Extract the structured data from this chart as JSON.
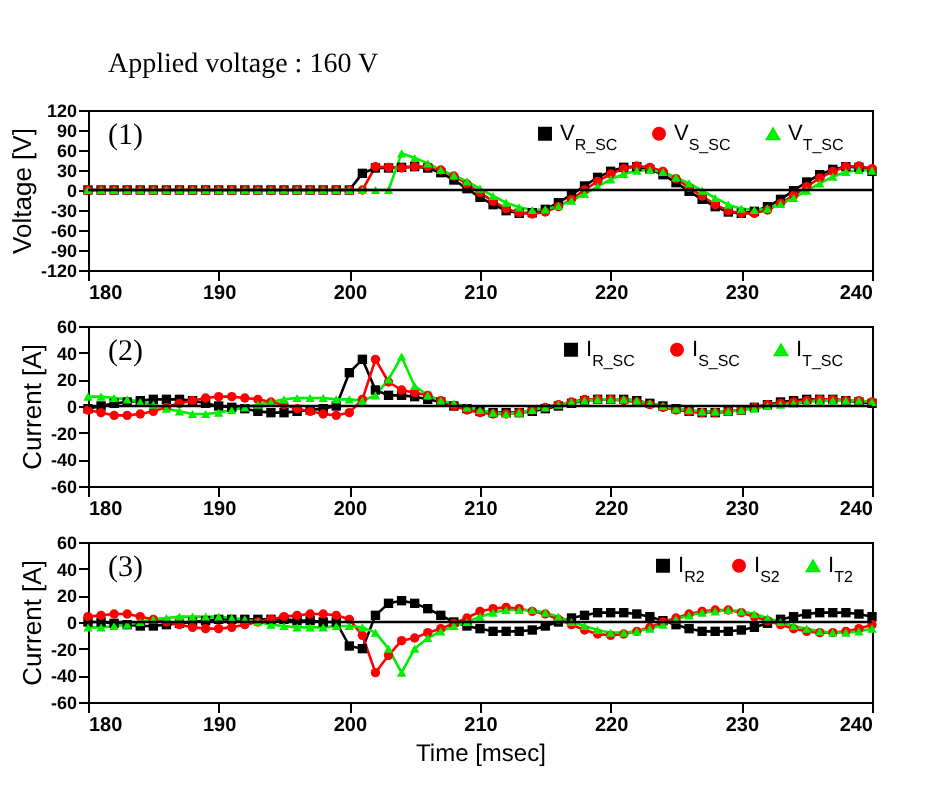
{
  "chart_data": [
    {
      "type": "line",
      "annotations": [
        "Applied voltage : 160 V",
        "(1)"
      ],
      "ylabel": "Voltage [V]",
      "xlim": [
        180,
        240
      ],
      "xticks": [
        180,
        190,
        200,
        210,
        220,
        230,
        240
      ],
      "ylim": [
        -120,
        120
      ],
      "yticks": [
        -120,
        -90,
        -60,
        -30,
        0,
        30,
        60,
        90,
        120
      ],
      "legend": "top right",
      "line_style": "solid",
      "ref_lines": [
        {
          "axis": "y",
          "value": 0,
          "color": "#000000"
        }
      ],
      "x": [
        180,
        181,
        182,
        183,
        184,
        185,
        186,
        187,
        188,
        189,
        190,
        191,
        192,
        193,
        194,
        195,
        196,
        197,
        198,
        199,
        200,
        201,
        202,
        203,
        204,
        205,
        206,
        207,
        208,
        209,
        210,
        211,
        212,
        213,
        214,
        215,
        216,
        217,
        218,
        219,
        220,
        221,
        222,
        223,
        224,
        225,
        226,
        227,
        228,
        229,
        230,
        231,
        232,
        233,
        234,
        235,
        236,
        237,
        238,
        239,
        240
      ],
      "series": [
        {
          "name": "V$_{R_SC}$",
          "color": "#000000",
          "marker": "square",
          "values": [
            0,
            0,
            0,
            0,
            0,
            0,
            0,
            0,
            0,
            0,
            0,
            0,
            0,
            0,
            0,
            0,
            0,
            0,
            0,
            0,
            0,
            25,
            33,
            33,
            34,
            35,
            33,
            26,
            15,
            2,
            -11,
            -22,
            -31,
            -35,
            -34,
            -29,
            -19,
            -7,
            6,
            19,
            28,
            34,
            35,
            31,
            23,
            11,
            -2,
            -14,
            -25,
            -33,
            -35,
            -32,
            -25,
            -14,
            -1,
            12,
            23,
            31,
            35,
            34,
            28
          ]
        },
        {
          "name": "V$_{S_SC}$",
          "color": "#ff0000",
          "marker": "circle",
          "values": [
            0,
            0,
            0,
            0,
            0,
            0,
            0,
            0,
            0,
            0,
            0,
            0,
            0,
            0,
            0,
            0,
            0,
            0,
            0,
            0,
            0,
            0,
            35,
            34,
            33,
            35,
            35,
            30,
            21,
            9,
            -4,
            -17,
            -28,
            -34,
            -36,
            -33,
            -25,
            -14,
            0,
            13,
            24,
            32,
            36,
            34,
            28,
            17,
            4,
            -9,
            -22,
            -31,
            -35,
            -35,
            -30,
            -20,
            -8,
            5,
            18,
            28,
            35,
            36,
            32
          ]
        },
        {
          "name": "V$_{T_SC}$",
          "color": "#00ee00",
          "marker": "triangle",
          "values": [
            0,
            0,
            0,
            0,
            0,
            0,
            0,
            0,
            0,
            0,
            0,
            0,
            0,
            0,
            0,
            0,
            0,
            0,
            0,
            0,
            0,
            0,
            0,
            0,
            55,
            48,
            40,
            30,
            22,
            13,
            2,
            -9,
            -19,
            -26,
            -30,
            -29,
            -24,
            -16,
            -6,
            5,
            16,
            24,
            29,
            30,
            27,
            19,
            10,
            -1,
            -12,
            -22,
            -28,
            -30,
            -28,
            -21,
            -12,
            -1,
            10,
            20,
            27,
            30,
            29
          ]
        }
      ]
    },
    {
      "type": "line",
      "annotations": [
        "(2)"
      ],
      "ylabel": "Current [A]",
      "xlim": [
        180,
        240
      ],
      "xticks": [
        180,
        190,
        200,
        210,
        220,
        230,
        240
      ],
      "ylim": [
        -60,
        60
      ],
      "yticks": [
        -60,
        -40,
        -20,
        0,
        20,
        40,
        60
      ],
      "legend": "top right",
      "line_style": "solid",
      "ref_lines": [
        {
          "axis": "y",
          "value": 0,
          "color": "#000000"
        }
      ],
      "x": [
        180,
        181,
        182,
        183,
        184,
        185,
        186,
        187,
        188,
        189,
        190,
        191,
        192,
        193,
        194,
        195,
        196,
        197,
        198,
        199,
        200,
        201,
        202,
        203,
        204,
        205,
        206,
        207,
        208,
        209,
        210,
        211,
        212,
        213,
        214,
        215,
        216,
        217,
        218,
        219,
        220,
        221,
        222,
        223,
        224,
        225,
        226,
        227,
        228,
        229,
        230,
        231,
        232,
        233,
        234,
        235,
        236,
        237,
        238,
        239,
        240
      ],
      "series": [
        {
          "name": "I$_{R_SC}$",
          "color": "#000000",
          "marker": "square",
          "values": [
            -2,
            0,
            2,
            3,
            4,
            5,
            5,
            5,
            4,
            2,
            0,
            -1,
            -2,
            -4,
            -5,
            -5,
            -4,
            -3,
            -2,
            0,
            25,
            35,
            12,
            8,
            8,
            7,
            5,
            3,
            0,
            -2,
            -4,
            -5,
            -5,
            -5,
            -4,
            -2,
            0,
            2,
            4,
            5,
            5,
            5,
            4,
            2,
            0,
            -2,
            -4,
            -5,
            -5,
            -4,
            -3,
            -1,
            1,
            3,
            4,
            5,
            5,
            5,
            4,
            3,
            2
          ]
        },
        {
          "name": "I$_{S_SC}$",
          "color": "#ff0000",
          "marker": "circle",
          "values": [
            -3,
            -5,
            -7,
            -7,
            -6,
            -4,
            -1,
            2,
            4,
            6,
            7,
            7,
            6,
            5,
            3,
            1,
            -2,
            -4,
            -6,
            -7,
            -5,
            5,
            35,
            18,
            12,
            10,
            8,
            4,
            0,
            -3,
            -5,
            -6,
            -6,
            -5,
            -3,
            -1,
            1,
            3,
            5,
            5,
            5,
            4,
            3,
            1,
            -1,
            -3,
            -4,
            -5,
            -5,
            -4,
            -3,
            -1,
            1,
            2,
            3,
            4,
            5,
            5,
            4,
            4,
            3
          ]
        },
        {
          "name": "I$_{T_SC}$",
          "color": "#00ee00",
          "marker": "triangle",
          "values": [
            7,
            7,
            6,
            5,
            3,
            1,
            -2,
            -4,
            -6,
            -6,
            -5,
            -3,
            -1,
            1,
            3,
            5,
            6,
            6,
            6,
            5,
            5,
            4,
            8,
            20,
            37,
            15,
            8,
            4,
            2,
            -1,
            -3,
            -5,
            -6,
            -5,
            -3,
            -1,
            1,
            3,
            4,
            5,
            5,
            5,
            4,
            2,
            0,
            -2,
            -3,
            -4,
            -4,
            -4,
            -3,
            -2,
            0,
            1,
            2,
            3,
            4,
            4,
            4,
            4,
            3
          ]
        }
      ]
    },
    {
      "type": "line",
      "annotations": [
        "(3)"
      ],
      "xlabel": "Time [msec]",
      "ylabel": "Current [A]",
      "xlim": [
        180,
        240
      ],
      "xticks": [
        180,
        190,
        200,
        210,
        220,
        230,
        240
      ],
      "ylim": [
        -60,
        60
      ],
      "yticks": [
        -60,
        -40,
        -20,
        0,
        20,
        40,
        60
      ],
      "legend": "top right",
      "line_style": "solid",
      "ref_lines": [
        {
          "axis": "y",
          "value": 0,
          "color": "#000000"
        }
      ],
      "x": [
        180,
        181,
        182,
        183,
        184,
        185,
        186,
        187,
        188,
        189,
        190,
        191,
        192,
        193,
        194,
        195,
        196,
        197,
        198,
        199,
        200,
        201,
        202,
        203,
        204,
        205,
        206,
        207,
        208,
        209,
        210,
        211,
        212,
        213,
        214,
        215,
        216,
        217,
        218,
        219,
        220,
        221,
        222,
        223,
        224,
        225,
        226,
        227,
        228,
        229,
        230,
        231,
        232,
        233,
        234,
        235,
        236,
        237,
        238,
        239,
        240
      ],
      "series": [
        {
          "name": "I$_{R2}$",
          "color": "#000000",
          "marker": "square",
          "values": [
            0,
            0,
            -1,
            -2,
            -3,
            -3,
            -2,
            -1,
            0,
            1,
            2,
            2,
            2,
            2,
            2,
            2,
            1,
            1,
            0,
            0,
            -18,
            -20,
            5,
            14,
            16,
            14,
            10,
            5,
            0,
            -3,
            -5,
            -7,
            -7,
            -7,
            -6,
            -3,
            0,
            3,
            5,
            7,
            7,
            7,
            6,
            4,
            1,
            -2,
            -5,
            -7,
            -7,
            -7,
            -6,
            -4,
            -1,
            2,
            4,
            6,
            7,
            7,
            7,
            6,
            4
          ]
        },
        {
          "name": "I$_{S2}$",
          "color": "#ff0000",
          "marker": "circle",
          "values": [
            4,
            5,
            6,
            6,
            4,
            2,
            0,
            -2,
            -4,
            -5,
            -5,
            -4,
            -2,
            0,
            2,
            4,
            5,
            6,
            6,
            5,
            2,
            -10,
            -38,
            -25,
            -14,
            -12,
            -8,
            -5,
            -1,
            3,
            8,
            10,
            11,
            10,
            8,
            6,
            2,
            -2,
            -6,
            -9,
            -10,
            -9,
            -7,
            -4,
            0,
            3,
            6,
            8,
            9,
            9,
            7,
            4,
            1,
            -2,
            -5,
            -7,
            -8,
            -8,
            -7,
            -5,
            -2
          ]
        },
        {
          "name": "I$_{T2}$",
          "color": "#00ee00",
          "marker": "triangle",
          "values": [
            -4,
            -4,
            -3,
            -2,
            0,
            2,
            3,
            4,
            4,
            4,
            4,
            3,
            2,
            0,
            -2,
            -3,
            -4,
            -4,
            -4,
            -3,
            -3,
            -4,
            -8,
            -20,
            -38,
            -20,
            -12,
            -7,
            -3,
            0,
            4,
            7,
            9,
            9,
            9,
            7,
            4,
            0,
            -3,
            -6,
            -8,
            -8,
            -7,
            -5,
            -2,
            2,
            5,
            7,
            8,
            9,
            8,
            6,
            3,
            0,
            -3,
            -5,
            -7,
            -8,
            -8,
            -7,
            -5
          ]
        }
      ]
    }
  ]
}
